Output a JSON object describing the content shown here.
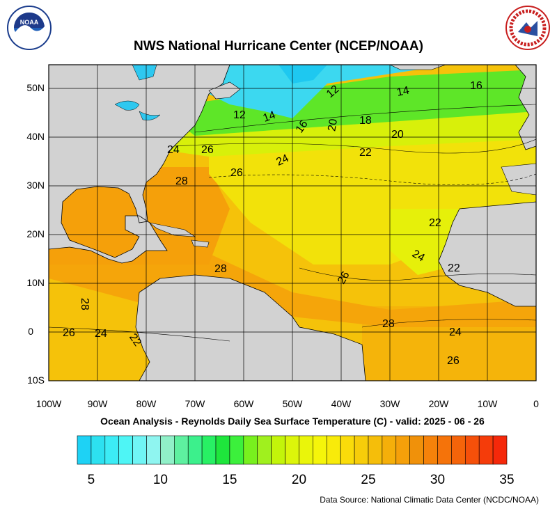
{
  "header": {
    "title": "NWS National Hurricane Center (NCEP/NOAA)",
    "left_logo": {
      "icon": "noaa-logo-icon",
      "text": "NOAA",
      "ring_text": "NATIONAL OCEANIC AND ATMOSPHERIC ADMINISTRATION · U.S. DEPARTMENT OF COMMERCE"
    },
    "right_logo": {
      "icon": "nws-logo-icon",
      "ring_text": "NATIONAL WEATHER SERVICE"
    }
  },
  "map": {
    "subtitle": "Ocean Analysis - Reynolds Daily Sea Surface Temperature (C) - valid: 2025 - 06 - 26",
    "source": "Data Source: National Climatic Data Center (NCDC/NOAA)",
    "lat_labels": [
      "50N",
      "40N",
      "30N",
      "20N",
      "10N",
      "0",
      "10S"
    ],
    "lon_labels": [
      "100W",
      "90W",
      "80W",
      "70W",
      "60W",
      "50W",
      "40W",
      "30W",
      "20W",
      "10W",
      "0"
    ],
    "land_color": "#d2d2d2",
    "contour_labels": [
      "16",
      "14",
      "12",
      "12",
      "14",
      "16",
      "20",
      "18",
      "20",
      "22",
      "24",
      "26",
      "24",
      "26",
      "28",
      "22",
      "24",
      "22",
      "28",
      "26",
      "28",
      "28",
      "26",
      "24",
      "22",
      "24",
      "26"
    ]
  },
  "colorbar": {
    "colors": [
      "#1ed2f5",
      "#2de1f0",
      "#3cecf5",
      "#4ef5f5",
      "#70f5f5",
      "#8ff5f0",
      "#90f0c8",
      "#5ef0a0",
      "#3cf08c",
      "#28f064",
      "#1ee63c",
      "#3cf03c",
      "#78f01e",
      "#a0f01e",
      "#c3f50a",
      "#dcf50a",
      "#eaf50a",
      "#f5f50a",
      "#f8eb0a",
      "#fadc0a",
      "#f7cd0a",
      "#f5be0a",
      "#f5af0a",
      "#f5a00a",
      "#f0910a",
      "#f5820a",
      "#f5730a",
      "#f5640a",
      "#f5500a",
      "#f53c0a",
      "#f5280a"
    ],
    "tick_labels": [
      "5",
      "10",
      "15",
      "20",
      "25",
      "30",
      "35"
    ]
  }
}
